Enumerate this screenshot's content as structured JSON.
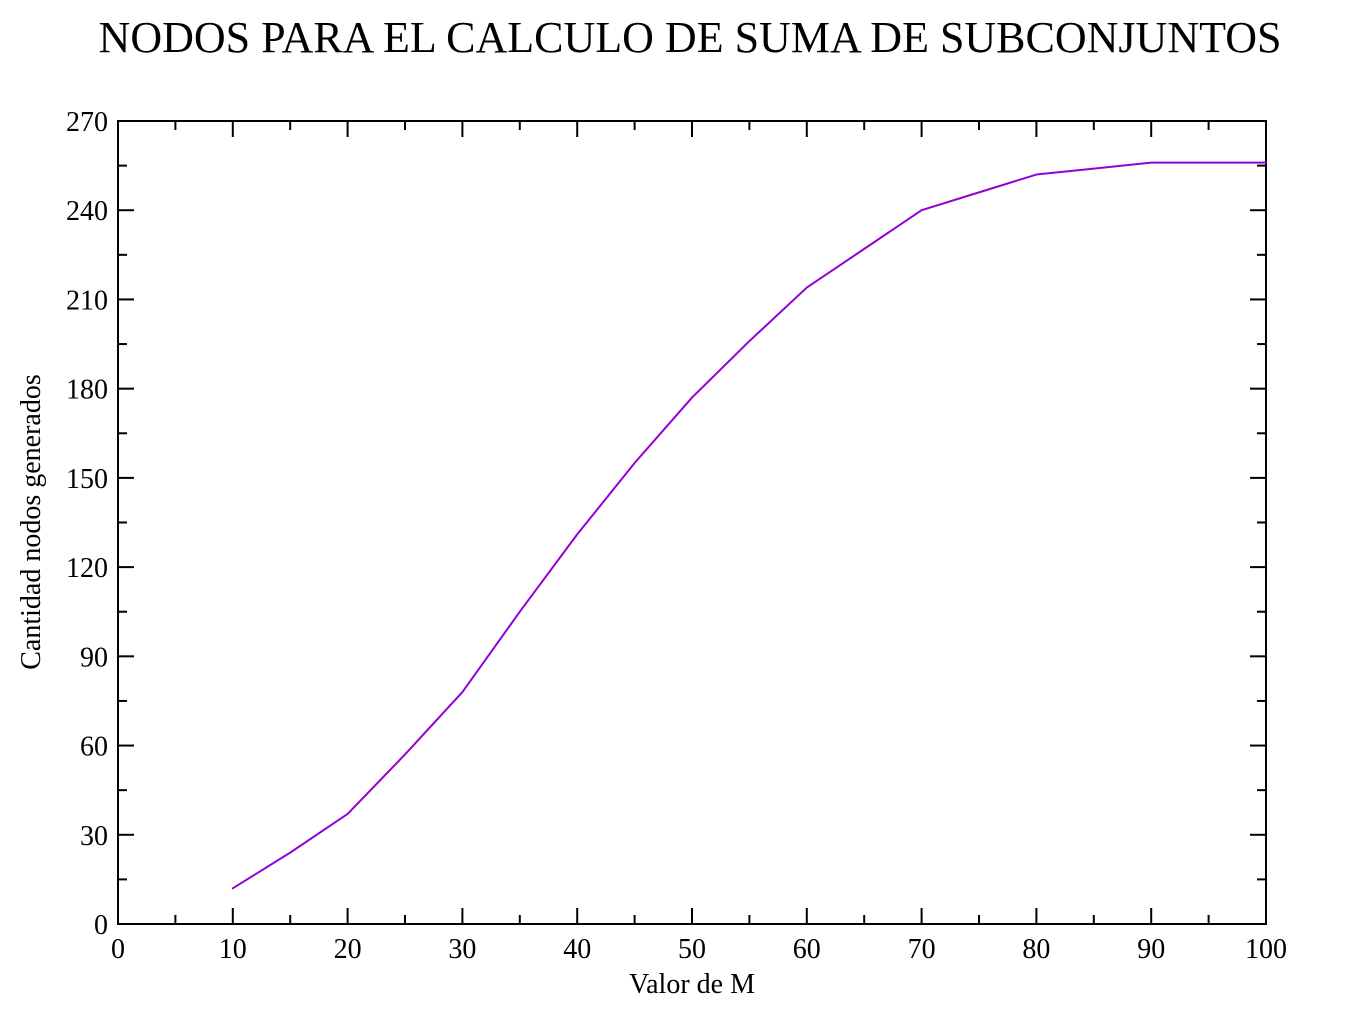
{
  "chart_data": {
    "type": "line",
    "title": "NODOS PARA EL CALCULO DE SUMA DE SUBCONJUNTOS",
    "xlabel": "Valor de M",
    "ylabel": "Cantidad nodos generados",
    "xlim": [
      0,
      100
    ],
    "ylim": [
      0,
      270
    ],
    "x_ticks": [
      "0",
      "10",
      "20",
      "30",
      "40",
      "50",
      "60",
      "70",
      "80",
      "90",
      "100"
    ],
    "y_ticks": [
      "0",
      "30",
      "60",
      "90",
      "120",
      "150",
      "180",
      "210",
      "240",
      "270"
    ],
    "grid": false,
    "series": [
      {
        "color": "#9400d3",
        "x": [
          10,
          15,
          20,
          25,
          30,
          35,
          40,
          45,
          50,
          55,
          60,
          65,
          70,
          75,
          80,
          85,
          90,
          95,
          100
        ],
        "y": [
          12,
          24,
          37,
          57,
          78,
          105,
          131,
          155,
          177,
          196,
          214,
          227,
          240,
          246,
          252,
          254,
          256,
          256,
          256
        ]
      }
    ]
  }
}
